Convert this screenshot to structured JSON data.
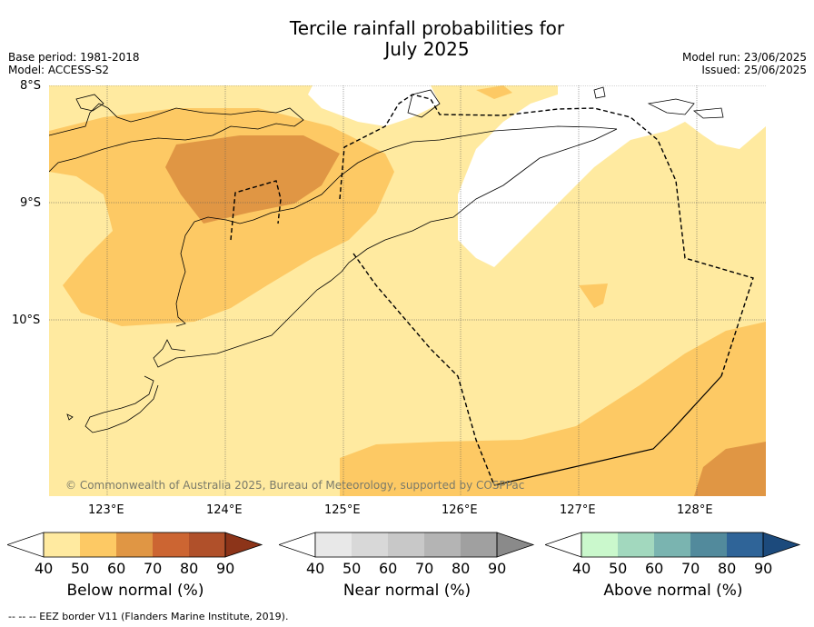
{
  "title_line1": "Tercile rainfall probabilities for",
  "title_line2": "July 2025",
  "base_period": "Base period: 1981-2018",
  "model": "Model: ACCESS-S2",
  "model_run": "Model run: 23/06/2025",
  "issued": "Issued: 25/06/2025",
  "lat_labels": [
    "8°S",
    "9°S",
    "10°S"
  ],
  "lon_labels": [
    "123°E",
    "124°E",
    "125°E",
    "126°E",
    "127°E",
    "128°E"
  ],
  "copyright": "© Commonwealth of Australia 2025, Bureau of Meteorology, supported by COSPPac",
  "colorbars": [
    {
      "label": "Below normal (%)",
      "ticks": [
        "40",
        "50",
        "60",
        "70",
        "80",
        "90"
      ],
      "colors": [
        "#ffffff",
        "#ffeaa0",
        "#fdc964",
        "#e09644",
        "#cc6532",
        "#b0502a",
        "#8c3419"
      ]
    },
    {
      "label": "Near normal (%)",
      "ticks": [
        "40",
        "50",
        "60",
        "70",
        "80",
        "90"
      ],
      "colors": [
        "#ffffff",
        "#e8e8e8",
        "#d8d8d8",
        "#c8c8c8",
        "#b4b4b4",
        "#a0a0a0",
        "#8a8a8a"
      ]
    },
    {
      "label": "Above normal (%)",
      "ticks": [
        "40",
        "50",
        "60",
        "70",
        "80",
        "90"
      ],
      "colors": [
        "#ffffff",
        "#caf8cc",
        "#a2d8be",
        "#7ab4b0",
        "#528a9c",
        "#2f6498",
        "#1c4a7c"
      ]
    }
  ],
  "footer": "--  --  -- EEZ border V11 (Flanders Marine Institute, 2019)."
}
